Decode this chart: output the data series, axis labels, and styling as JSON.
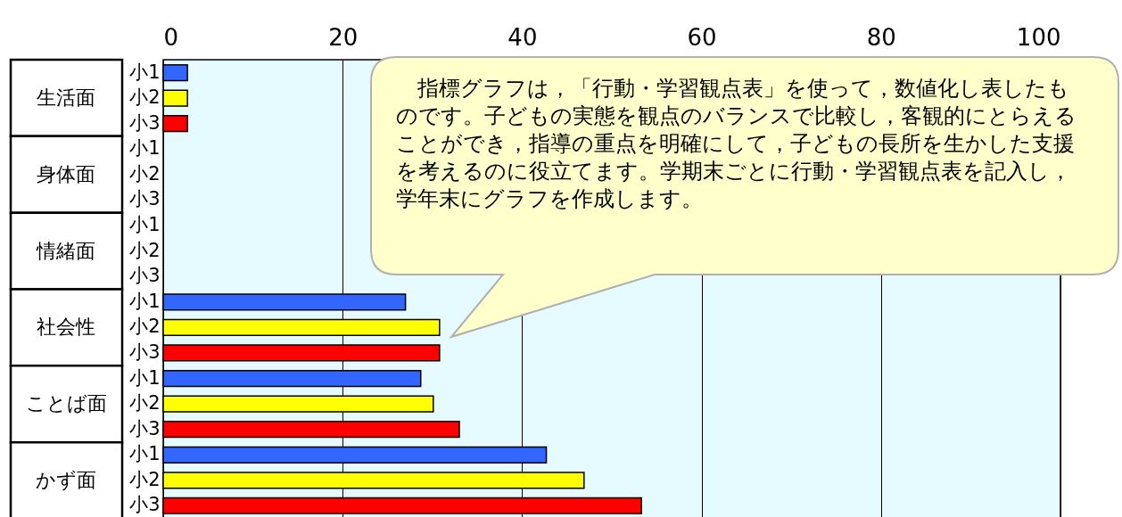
{
  "chart_data": {
    "type": "bar",
    "orientation": "horizontal",
    "categories": [
      "小1",
      "小2",
      "小3",
      "小1",
      "小2",
      "小3",
      "小1",
      "小2",
      "小3",
      "小1",
      "小2",
      "小3",
      "小1",
      "小2",
      "小3",
      "小1",
      "小2",
      "小3"
    ],
    "values": [
      2.7,
      2.7,
      2.7,
      null,
      null,
      null,
      null,
      null,
      null,
      27,
      30.8,
      30.8,
      28.7,
      30.1,
      33,
      42.7,
      46.9,
      53.3
    ],
    "colors": [
      "#3366ff",
      "#ffff00",
      "#ff0000",
      "#3366ff",
      "#ffff00",
      "#ff0000",
      "#3366ff",
      "#ffff00",
      "#ff0000",
      "#3366ff",
      "#ffff00",
      "#ff0000",
      "#3366ff",
      "#ffff00",
      "#ff0000",
      "#3366ff",
      "#ffff00",
      "#ff0000"
    ],
    "xlim": [
      0,
      100
    ],
    "xticks": [
      0,
      20,
      40,
      60,
      80,
      100
    ],
    "grid": "x",
    "annotations": [
      "　指標グラフは，「行動・学習観点表」を使って，数値化し表したものです。子どもの実態を観点のバランスで比較し，客観的にとらえることができ，指導の重点を明確にして，子どもの長所を生かした支援を考えるのに役立てます。学期末ごとに行動・学習観点表を記入し，学年末にグラフを作成します。",
      "生活面",
      "身体面",
      "情緒面",
      "社会性",
      "ことば面",
      "かず面"
    ]
  }
}
